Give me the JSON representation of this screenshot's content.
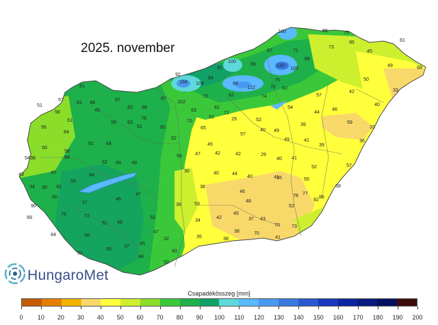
{
  "title": "2025. november",
  "brand": "HungaroMet",
  "legend": {
    "title": "Csapadékösszeg [mm]",
    "ticks": [
      "0",
      "10",
      "20",
      "30",
      "40",
      "50",
      "60",
      "70",
      "80",
      "90",
      "100",
      "110",
      "120",
      "130",
      "140",
      "150",
      "160",
      "170",
      "180",
      "190",
      "200"
    ],
    "colors": [
      "#c45c00",
      "#e67e00",
      "#f2b400",
      "#f9d86a",
      "#ffff3c",
      "#cdef2e",
      "#8ade2a",
      "#3ac83a",
      "#1eb04a",
      "#11a066",
      "#5ed8d8",
      "#5ab9ff",
      "#4a99f0",
      "#3a79e0",
      "#2a59d0",
      "#1a39c0",
      "#0c24a0",
      "#081a80",
      "#051060",
      "#3b0c0c"
    ]
  },
  "stations": [
    {
      "v": "100"
    },
    {
      "v": "66"
    },
    {
      "v": "75"
    },
    {
      "v": "61"
    },
    {
      "v": "73"
    },
    {
      "v": "95"
    },
    {
      "v": "45"
    },
    {
      "v": "87"
    },
    {
      "v": "71"
    },
    {
      "v": "86"
    },
    {
      "v": "49"
    },
    {
      "v": "68"
    },
    {
      "v": "100"
    },
    {
      "v": "66"
    },
    {
      "v": "120"
    },
    {
      "v": "103"
    },
    {
      "v": "91"
    },
    {
      "v": "92"
    },
    {
      "v": "168"
    },
    {
      "v": "104"
    },
    {
      "v": "64"
    },
    {
      "v": "88"
    },
    {
      "v": "122"
    },
    {
      "v": "75"
    },
    {
      "v": "72"
    },
    {
      "v": "62"
    },
    {
      "v": "50"
    },
    {
      "v": "42"
    },
    {
      "v": "33"
    },
    {
      "v": "61"
    },
    {
      "v": "57"
    },
    {
      "v": "67"
    },
    {
      "v": "87"
    },
    {
      "v": "102"
    },
    {
      "v": "72"
    },
    {
      "v": "62"
    },
    {
      "v": "74"
    },
    {
      "v": "57"
    },
    {
      "v": "51"
    },
    {
      "v": "56"
    },
    {
      "v": "61"
    },
    {
      "v": "48"
    },
    {
      "v": "45"
    },
    {
      "v": "82"
    },
    {
      "v": "68"
    },
    {
      "v": "63"
    },
    {
      "v": "61"
    },
    {
      "v": "71"
    },
    {
      "v": "54"
    },
    {
      "v": "44"
    },
    {
      "v": "46"
    },
    {
      "v": "40"
    },
    {
      "v": "56"
    },
    {
      "v": "51"
    },
    {
      "v": "63"
    },
    {
      "v": "78"
    },
    {
      "v": "60"
    },
    {
      "v": "70"
    },
    {
      "v": "51"
    },
    {
      "v": "29"
    },
    {
      "v": "52"
    },
    {
      "v": "59"
    },
    {
      "v": "84"
    },
    {
      "v": "59"
    },
    {
      "v": "61"
    },
    {
      "v": "65"
    },
    {
      "v": "49"
    },
    {
      "v": "39"
    },
    {
      "v": "33"
    },
    {
      "v": "40"
    },
    {
      "v": "50"
    },
    {
      "v": "58"
    },
    {
      "v": "91"
    },
    {
      "v": "64"
    },
    {
      "v": "52"
    },
    {
      "v": "45"
    },
    {
      "v": "57"
    },
    {
      "v": "49"
    },
    {
      "v": "41"
    },
    {
      "v": "39"
    },
    {
      "v": "36"
    },
    {
      "v": "42"
    },
    {
      "v": "64"
    },
    {
      "v": "62"
    },
    {
      "v": "65"
    },
    {
      "v": "49"
    },
    {
      "v": "56"
    },
    {
      "v": "47"
    },
    {
      "v": "42"
    },
    {
      "v": "29"
    },
    {
      "v": "40"
    },
    {
      "v": "41"
    },
    {
      "v": "52"
    },
    {
      "v": "57"
    },
    {
      "v": "54"
    },
    {
      "v": "43"
    },
    {
      "v": "38"
    },
    {
      "v": "45"
    },
    {
      "v": "64"
    },
    {
      "v": "55"
    },
    {
      "v": "30"
    },
    {
      "v": "40"
    },
    {
      "v": "44"
    },
    {
      "v": "40"
    },
    {
      "v": "41"
    },
    {
      "v": "55"
    },
    {
      "v": "68"
    },
    {
      "v": "62"
    },
    {
      "v": "30"
    },
    {
      "v": "34"
    },
    {
      "v": "38"
    },
    {
      "v": "46"
    },
    {
      "v": "55"
    },
    {
      "v": "77"
    },
    {
      "v": "78"
    },
    {
      "v": "90"
    },
    {
      "v": "60"
    },
    {
      "v": "57"
    },
    {
      "v": "46"
    },
    {
      "v": "47"
    },
    {
      "v": "36"
    },
    {
      "v": "53"
    },
    {
      "v": "48"
    },
    {
      "v": "52"
    },
    {
      "v": "82"
    },
    {
      "v": "86"
    },
    {
      "v": "69"
    },
    {
      "v": "75"
    },
    {
      "v": "72"
    },
    {
      "v": "61"
    },
    {
      "v": "48"
    },
    {
      "v": "33"
    },
    {
      "v": "34"
    },
    {
      "v": "42"
    },
    {
      "v": "45"
    },
    {
      "v": "37"
    },
    {
      "v": "43"
    },
    {
      "v": "70"
    },
    {
      "v": "73"
    },
    {
      "v": "84"
    },
    {
      "v": "56"
    },
    {
      "v": "47"
    },
    {
      "v": "45"
    },
    {
      "v": "32"
    },
    {
      "v": "35"
    },
    {
      "v": "38"
    },
    {
      "v": "38"
    },
    {
      "v": "70"
    },
    {
      "v": "41"
    },
    {
      "v": "52"
    },
    {
      "v": "60"
    },
    {
      "v": "56"
    },
    {
      "v": "37"
    },
    {
      "v": "84"
    },
    {
      "v": "52"
    }
  ]
}
